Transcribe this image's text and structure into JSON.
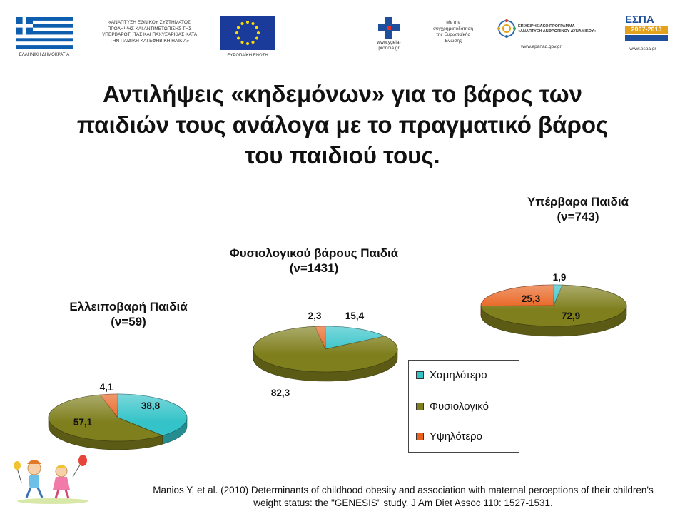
{
  "header": {
    "greek_flag_caption": "ΕΛΛΗΝΙΚΗ ΔΗΜΟΚΡΑΤΙΑ",
    "project_lines": [
      "«ΑΝΑΠΤΥΞΗ ΕΘΝΙΚΟΥ ΣΥΣΤΗΜΑΤΟΣ",
      "ΠΡΟΛΗΨΗΣ ΚΑΙ ΑΝΤΙΜΕΤΩΠΙΣΗΣ ΤΗΣ",
      "ΥΠΕΡΒΑΡΟΤΗΤΑΣ ΚΑΙ ΠΑΧΥΣΑΡΚΙΑΣ ΚΑΤΑ",
      "ΤΗΝ ΠΑΙΔΙΚΗ ΚΑΙ ΕΦΗΒΙΚΗ ΗΛΙΚΙΑ»"
    ],
    "eu_flag_caption": "ΕΥΡΩΠΑΪΚΗ ΕΝΩΣΗ",
    "ministry_url_lines": [
      "www.ygeia-",
      "pronoia.gr"
    ],
    "cofinanced_lines": [
      "Με την",
      "συγχρηματοδότηση",
      "της Ευρωπαϊκής",
      "Ένωσης"
    ],
    "epanad_lines": [
      "ΕΠΙΧΕΙΡΗΣΙΑΚΟ ΠΡΟΓΡΑΜΜΑ",
      "«ΑΝΑΠΤΥΞΗ ΑΝΘΡΩΠΙΝΟΥ ΔΥΝΑΜΙΚΟΥ»"
    ],
    "epanad_url": "www.epanad.gov.gr",
    "espa_name": "ΕΣΠΑ",
    "espa_years": "2007-2013",
    "espa_url": "www.espa.gr"
  },
  "title": {
    "line1": "Αντιλήψεις «κηδεμόνων» για το βάρος των",
    "line2": "παιδιών τους ανάλογα με το πραγματικό βάρος",
    "line3": "του παιδιού τους."
  },
  "legend": {
    "lower": "Χαμηλότερο",
    "normal": "Φυσιολογικό",
    "higher": "Υψηλότερο"
  },
  "colors": {
    "lower": "#33c3c8",
    "normal": "#7f7f1e",
    "higher": "#e8621e"
  },
  "chart_data": [
    {
      "type": "pie",
      "title_line1": "Ελλειποβαρή Παιδιά",
      "title_line2": "(ν=59)",
      "categories": [
        "Χαμηλότερο",
        "Φυσιολογικό",
        "Υψηλότερο"
      ],
      "values": [
        38.8,
        57.1,
        4.1
      ],
      "labels": [
        "38,8",
        "57,1",
        "4,1"
      ]
    },
    {
      "type": "pie",
      "title_line1": "Φυσιολογικού βάρους Παιδιά",
      "title_line2": "(ν=1431)",
      "categories": [
        "Χαμηλότερο",
        "Φυσιολογικό",
        "Υψηλότερο"
      ],
      "values": [
        15.4,
        82.3,
        2.3
      ],
      "labels": [
        "15,4",
        "82,3",
        "2,3"
      ]
    },
    {
      "type": "pie",
      "title_line1": "Υπέρβαρα Παιδιά",
      "title_line2": "(ν=743)",
      "categories": [
        "Χαμηλότερο",
        "Φυσιολογικό",
        "Υψηλότερο"
      ],
      "values": [
        1.9,
        72.9,
        25.3
      ],
      "labels": [
        "1,9",
        "72,9",
        "25,3"
      ]
    }
  ],
  "citation": {
    "line1": "Manios Y, et al. (2010) Determinants of childhood obesity and association with maternal perceptions of their children's",
    "line2": "weight status: the \"GENESIS\" study. J Am Diet Assoc 110: 1527-1531."
  }
}
